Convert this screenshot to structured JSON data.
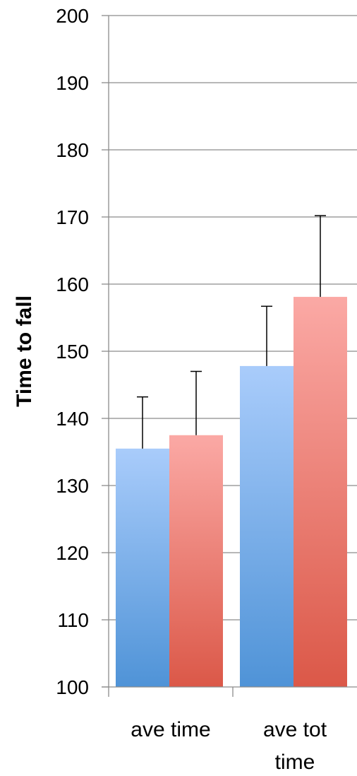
{
  "chart_data": {
    "type": "bar",
    "categories": [
      "ave time",
      "ave tot time"
    ],
    "category_lines": [
      [
        "ave time"
      ],
      [
        "ave tot",
        "time"
      ]
    ],
    "series": [
      {
        "values": [
          135.5,
          147.8
        ],
        "error": [
          7.7,
          8.9
        ],
        "color_top": "#a9ccfb",
        "color_bottom": "#4f93d7"
      },
      {
        "values": [
          137.5,
          158.1
        ],
        "error": [
          9.5,
          12.1
        ],
        "color_top": "#fba9a5",
        "color_bottom": "#db5848"
      }
    ],
    "xlabel": "",
    "ylabel": "Time to fall",
    "ylim": [
      100,
      200
    ],
    "yticks": [
      100,
      110,
      120,
      130,
      140,
      150,
      160,
      170,
      180,
      190,
      200
    ],
    "grid": true,
    "legend": "none"
  }
}
